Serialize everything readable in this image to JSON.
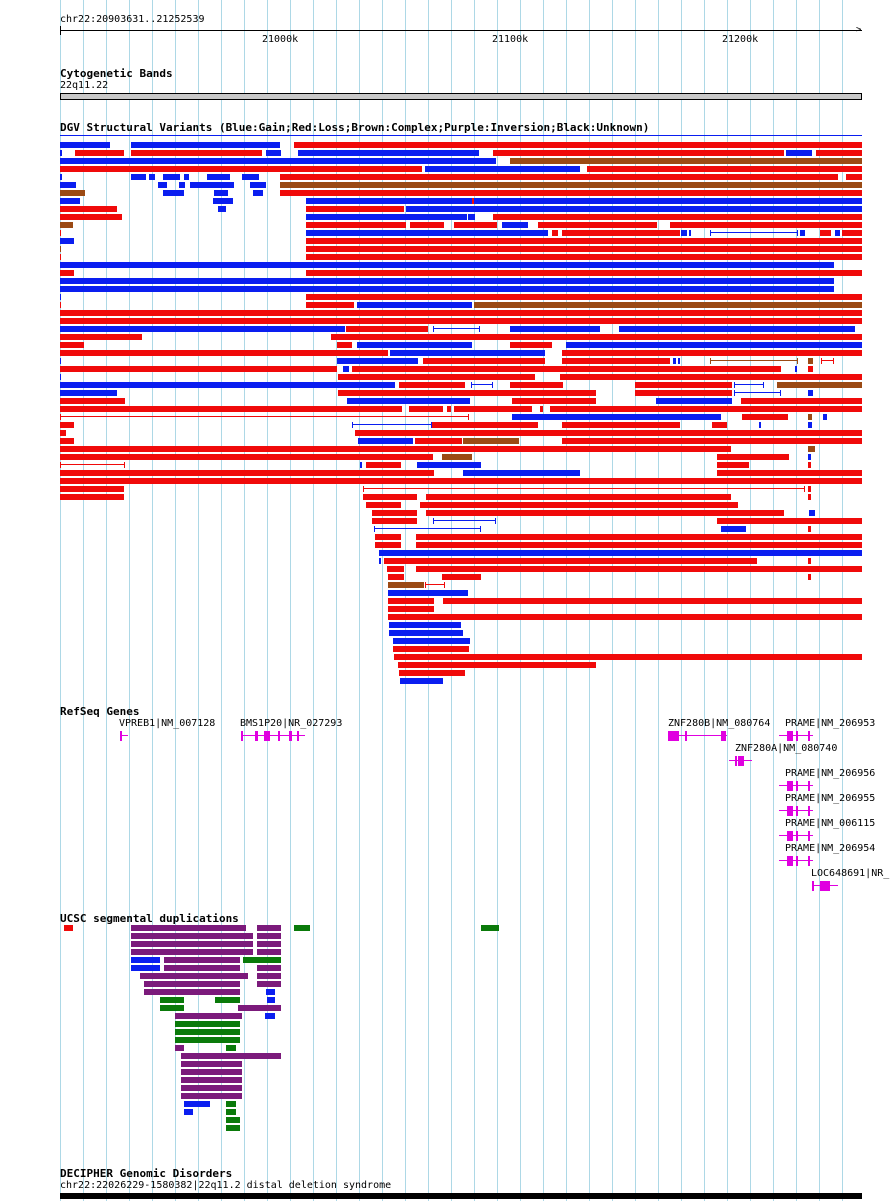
{
  "coordinates_label": "chr22:20903631..21252539",
  "ruler": {
    "ticks": [
      {
        "label": "21000k"
      },
      {
        "label": "21100k"
      },
      {
        "label": "21200k"
      }
    ]
  },
  "cytoband": {
    "title": "Cytogenetic Bands",
    "band": "22q11.22"
  },
  "dgv": {
    "title": "DGV Structural Variants (Blue:Gain;Red:Loss;Brown:Complex;Purple:Inversion;Black:Unknown)"
  },
  "colors": {
    "gain": "#0a1ef0",
    "loss": "#f00a0a",
    "complex": "#9b4a14",
    "gene": "#e000e0",
    "segdup_purple": "#7b1a7b",
    "segdup_green": "#0a7a0a",
    "segdup_red": "#f00a0a",
    "segdup_blue": "#0a1ef0",
    "grid": "#add8e6",
    "band": "#c8c8c8"
  },
  "refseq": {
    "title": "RefSeq Genes",
    "genes": [
      {
        "label": "VPREB1|NM_007128"
      },
      {
        "label": "BMS1P20|NR_027293"
      },
      {
        "label": "ZNF280B|NM_080764"
      },
      {
        "label": "PRAME|NM_206953"
      },
      {
        "label": "ZNF280A|NM_080740"
      },
      {
        "label": "PRAME|NM_206956"
      },
      {
        "label": "PRAME|NM_206955"
      },
      {
        "label": "PRAME|NM_006115"
      },
      {
        "label": "PRAME|NM_206954"
      },
      {
        "label": "LOC648691|NR_"
      }
    ]
  },
  "segdup": {
    "title": "UCSC segmental duplications"
  },
  "decipher": {
    "title": "DECIPHER Genomic Disorders",
    "entry": "chr22:22026229-1580382|22q11.2 distal deletion syndrome"
  }
}
